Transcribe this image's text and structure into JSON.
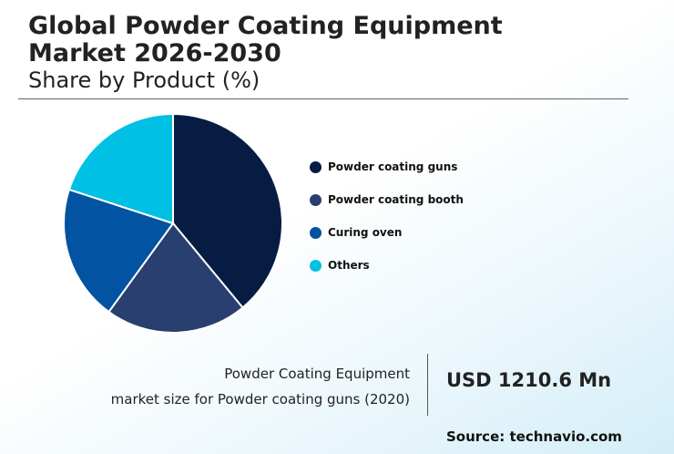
{
  "header": {
    "title_line1": "Global Powder Coating Equipment",
    "title_line2": "Market 2026-2030",
    "subtitle": "Share by Product (%)"
  },
  "chart_data": {
    "type": "pie",
    "title": "Global Powder Coating Equipment Market 2026-2030",
    "subtitle": "Share by Product (%)",
    "legend_position": "right",
    "categories": [
      "Powder coating guns",
      "Powder coating booth",
      "Curing oven",
      "Others"
    ],
    "values": [
      39,
      21,
      20,
      20
    ],
    "colors": [
      "#071c43",
      "#283f6f",
      "#0253a1",
      "#00c0e3"
    ]
  },
  "fact": {
    "line1": "Powder Coating Equipment",
    "line2": "market size for Powder coating guns (2020)",
    "value": "USD 1210.6 Mn"
  },
  "source": "Source: technavio.com"
}
